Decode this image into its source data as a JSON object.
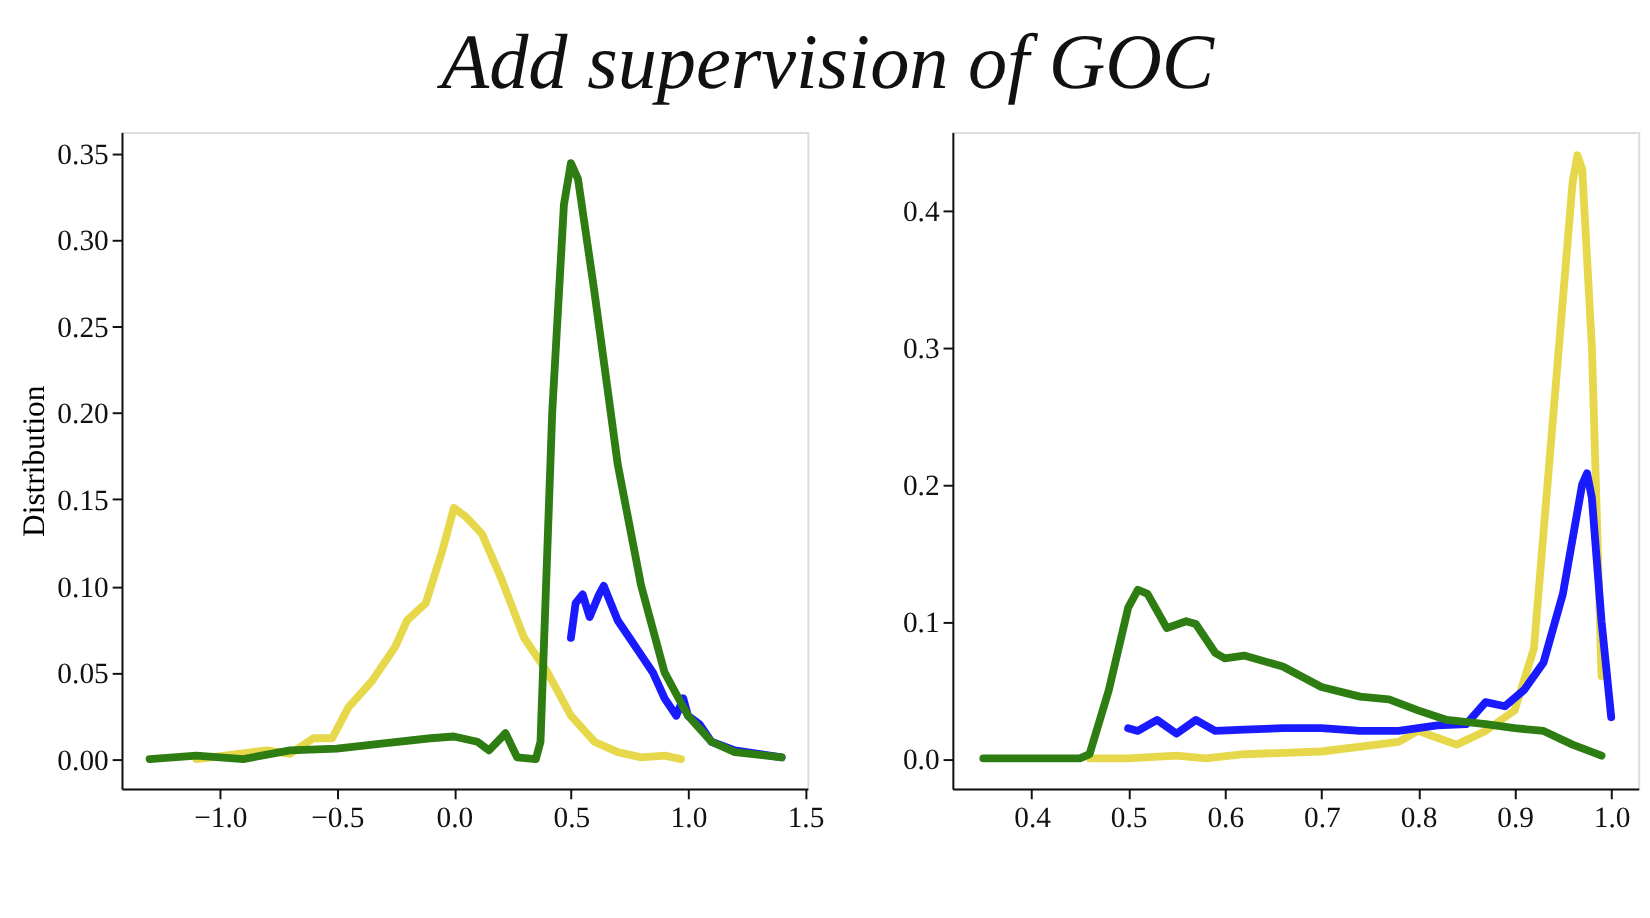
{
  "chart_data": [
    {
      "type": "line",
      "title": "Add supervision of GOC",
      "ylabel": "Distribution",
      "grid": false,
      "line_style": "solid",
      "marker": "none",
      "xlim": [
        -1.42,
        1.51
      ],
      "xticks": [
        {
          "value": -1.0,
          "label": "−1.0"
        },
        {
          "value": -0.5,
          "label": "−0.5"
        },
        {
          "value": 0,
          "label": "0.0"
        },
        0.5,
        {
          "value": 1,
          "label": "1.0"
        },
        1.5
      ],
      "ylim": [
        -0.017,
        0.362
      ],
      "yticks": [
        {
          "value": 0,
          "label": "0.00"
        },
        0.05,
        {
          "value": 0.1,
          "label": "0.10"
        },
        0.15,
        {
          "value": 0.2,
          "label": "0.20"
        },
        0.25,
        {
          "value": 0.3,
          "label": "0.30"
        },
        0.35
      ],
      "series": [
        {
          "color": "#e6d84a",
          "x": [
            -1.1,
            -0.8,
            -0.7,
            -0.6,
            -0.52,
            -0.45,
            -0.35,
            -0.25,
            -0.2,
            -0.12,
            -0.05,
            0.0,
            0.05,
            0.12,
            0.2,
            0.3,
            0.4,
            0.5,
            0.6,
            0.7,
            0.8,
            0.9,
            0.97
          ],
          "values": [
            0.0,
            0.005,
            0.003,
            0.012,
            0.012,
            0.03,
            0.045,
            0.065,
            0.08,
            0.09,
            0.12,
            0.145,
            0.14,
            0.13,
            0.105,
            0.07,
            0.05,
            0.025,
            0.01,
            0.004,
            0.001,
            0.002,
            0.0
          ]
        },
        {
          "color": "#1a1aff",
          "x": [
            0.5,
            0.52,
            0.55,
            0.58,
            0.62,
            0.64,
            0.67,
            0.7,
            0.75,
            0.8,
            0.85,
            0.9,
            0.95,
            0.98,
            1.0,
            1.05,
            1.1,
            1.2,
            1.3,
            1.4
          ],
          "values": [
            0.07,
            0.09,
            0.095,
            0.082,
            0.095,
            0.1,
            0.09,
            0.08,
            0.07,
            0.06,
            0.05,
            0.035,
            0.025,
            0.035,
            0.025,
            0.02,
            0.01,
            0.005,
            0.003,
            0.001
          ]
        },
        {
          "color": "#2e7d12",
          "x": [
            -1.3,
            -1.1,
            -0.9,
            -0.7,
            -0.5,
            -0.3,
            -0.1,
            0.0,
            0.1,
            0.15,
            0.2,
            0.22,
            0.27,
            0.35,
            0.37,
            0.42,
            0.47,
            0.5,
            0.53,
            0.6,
            0.7,
            0.8,
            0.9,
            1.0,
            1.1,
            1.2,
            1.4
          ],
          "values": [
            0.0,
            0.002,
            0.0,
            0.005,
            0.006,
            0.009,
            0.012,
            0.013,
            0.01,
            0.005,
            0.012,
            0.015,
            0.001,
            0.0,
            0.01,
            0.2,
            0.32,
            0.344,
            0.335,
            0.27,
            0.17,
            0.1,
            0.05,
            0.025,
            0.01,
            0.004,
            0.001
          ]
        }
      ]
    },
    {
      "type": "line",
      "grid": false,
      "line_style": "solid",
      "marker": "none",
      "xlim": [
        0.318,
        1.028
      ],
      "xticks": [
        0.4,
        0.5,
        0.6,
        0.7,
        0.8,
        0.9,
        {
          "value": 1,
          "label": "1.0"
        }
      ],
      "ylim": [
        -0.022,
        0.457
      ],
      "yticks": [
        {
          "value": 0,
          "label": "0.0"
        },
        0.1,
        0.2,
        0.3,
        0.4
      ],
      "series": [
        {
          "color": "#e6d84a",
          "x": [
            0.46,
            0.5,
            0.55,
            0.58,
            0.62,
            0.7,
            0.78,
            0.8,
            0.82,
            0.84,
            0.87,
            0.9,
            0.92,
            0.94,
            0.96,
            0.965,
            0.97,
            0.98,
            0.99
          ],
          "values": [
            0.0,
            0.0,
            0.002,
            0.0,
            0.003,
            0.005,
            0.012,
            0.02,
            0.015,
            0.01,
            0.02,
            0.035,
            0.08,
            0.25,
            0.42,
            0.44,
            0.43,
            0.3,
            0.06
          ]
        },
        {
          "color": "#1a1aff",
          "x": [
            0.5,
            0.51,
            0.53,
            0.55,
            0.57,
            0.59,
            0.62,
            0.66,
            0.7,
            0.74,
            0.78,
            0.82,
            0.85,
            0.87,
            0.89,
            0.91,
            0.93,
            0.95,
            0.97,
            0.975,
            0.98,
            0.99,
            1.0
          ],
          "values": [
            0.022,
            0.02,
            0.028,
            0.018,
            0.028,
            0.02,
            0.021,
            0.022,
            0.022,
            0.02,
            0.02,
            0.024,
            0.025,
            0.041,
            0.038,
            0.05,
            0.07,
            0.12,
            0.2,
            0.208,
            0.19,
            0.1,
            0.03
          ]
        },
        {
          "color": "#2e7d12",
          "x": [
            0.35,
            0.45,
            0.46,
            0.48,
            0.5,
            0.51,
            0.52,
            0.54,
            0.56,
            0.57,
            0.59,
            0.6,
            0.62,
            0.66,
            0.7,
            0.74,
            0.77,
            0.8,
            0.83,
            0.87,
            0.9,
            0.93,
            0.96,
            0.99
          ],
          "values": [
            0.0,
            0.0,
            0.003,
            0.05,
            0.11,
            0.123,
            0.12,
            0.095,
            0.1,
            0.098,
            0.077,
            0.073,
            0.075,
            0.067,
            0.052,
            0.045,
            0.043,
            0.035,
            0.028,
            0.025,
            0.022,
            0.02,
            0.01,
            0.002
          ]
        }
      ]
    }
  ]
}
